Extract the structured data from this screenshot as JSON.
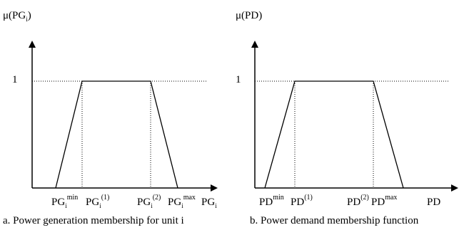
{
  "left": {
    "y_title_base": "μ(PG",
    "y_title_sub": "i",
    "y_title_close": ")",
    "one_label": "1",
    "ticks": {
      "t1": {
        "base": "PG",
        "sub": "i",
        "sup": "min"
      },
      "t2": {
        "base": "PG",
        "sub": "i",
        "sup": "(1)"
      },
      "t3": {
        "base": "PG",
        "sub": "i",
        "sup": "(2)"
      },
      "t4": {
        "base": "PG",
        "sub": "i",
        "sup": "max"
      },
      "axis": {
        "base": "PG",
        "sub": "i"
      }
    },
    "caption": "a. Power generation membership for unit i"
  },
  "right": {
    "y_title": "μ(PD)",
    "one_label": "1",
    "ticks": {
      "t1": {
        "base": "PD",
        "sup": "min"
      },
      "t2": {
        "base": "PD",
        "sup": "(1)"
      },
      "t3": {
        "base": "PD",
        "sup": "(2)"
      },
      "t4": {
        "base": "PD",
        "sup": "max"
      },
      "axis": {
        "base": "PD"
      }
    },
    "caption": "b. Power demand membership function"
  },
  "colors": {
    "line": "#000000",
    "dotted": "#000000"
  }
}
